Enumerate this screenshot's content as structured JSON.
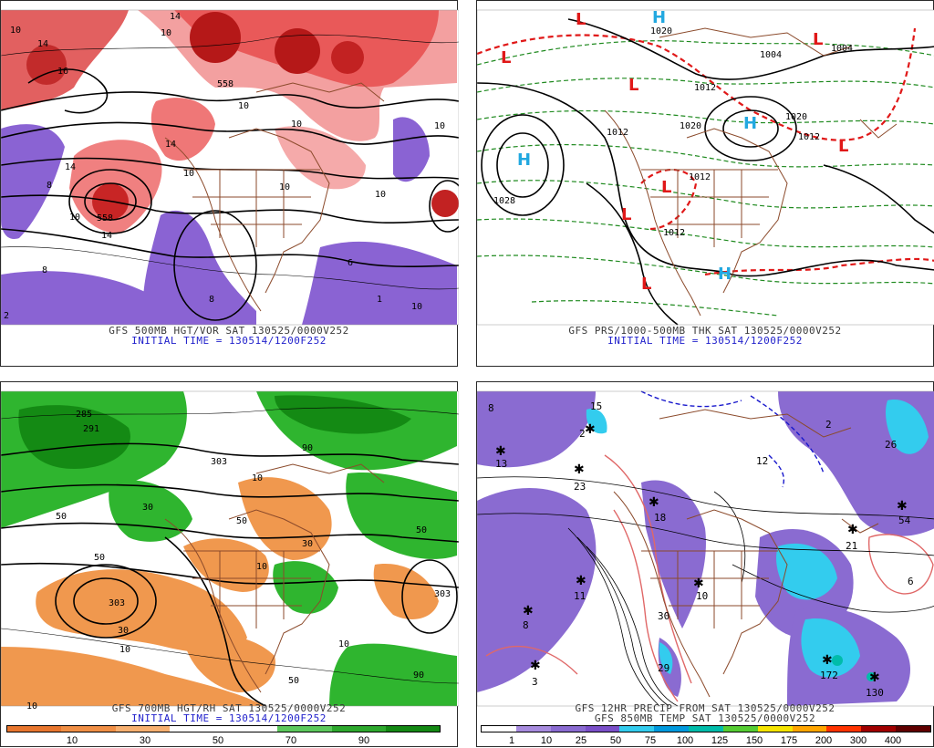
{
  "panels": {
    "tl": {
      "caption1": "GFS 500MB HGT/VOR SAT 130525/0000V252",
      "caption2": "INITIAL TIME = 130514/1200F252",
      "labels": [
        "10",
        "14",
        "16",
        "14",
        "558",
        "10",
        "10",
        "10",
        "14",
        "10",
        "558",
        "14",
        "14",
        "10",
        "10",
        "10",
        "8",
        "8",
        "8",
        "2",
        "1",
        "10",
        "10",
        "6"
      ]
    },
    "tr": {
      "caption1": "GFS PRS/1000-500MB THK SAT 130525/0000V252",
      "caption2": "INITIAL TIME = 130514/1200F252",
      "labels": [
        "1020",
        "1012",
        "1012",
        "1020",
        "1020",
        "1004",
        "1004",
        "1012",
        "1012",
        "1028",
        "1012"
      ],
      "highs": [
        "H",
        "H",
        "H",
        "H"
      ],
      "lows": [
        "L",
        "L",
        "L",
        "L",
        "L",
        "L",
        "L",
        "L"
      ]
    },
    "bl": {
      "caption1": "GFS 700MB HGT/RH SAT 130525/0000V252",
      "caption2": "INITIAL TIME = 130514/1200F252",
      "labels": [
        "285",
        "291",
        "303",
        "50",
        "50",
        "50",
        "90",
        "30",
        "30",
        "10",
        "10",
        "10",
        "303",
        "90",
        "10",
        "50",
        "50",
        "30",
        "303",
        "10"
      ]
    },
    "br": {
      "caption1": "GFS 12HR PRECIP FROM SAT 130525/0000V252",
      "caption2": "GFS 850MB TEMP SAT 130525/0000V252",
      "labels": [
        "8",
        "15",
        "13",
        "2",
        "23",
        "18",
        "26",
        "2",
        "11",
        "8",
        "3",
        "10",
        "54",
        "21",
        "12",
        "30",
        "29",
        "172",
        "130",
        "6"
      ]
    }
  },
  "legend_left": {
    "ticks": [
      "10",
      "30",
      "50",
      "70",
      "90"
    ],
    "colors": [
      "#e8762e",
      "#f08f45",
      "#f7b070",
      "#ffffff",
      "#ffffff",
      "#5cc85c",
      "#2da82d",
      "#138813"
    ]
  },
  "legend_right": {
    "ticks": [
      "1",
      "10",
      "25",
      "50",
      "75",
      "100",
      "125",
      "150",
      "175",
      "200",
      "300",
      "400"
    ],
    "colors": [
      "#ffffff",
      "#a78bde",
      "#8a6bd1",
      "#7a4fc8",
      "#33ccee",
      "#0099dd",
      "#00bcaa",
      "#55cc33",
      "#f5e400",
      "#ffa500",
      "#ff3300",
      "#a00000",
      "#600000"
    ]
  }
}
